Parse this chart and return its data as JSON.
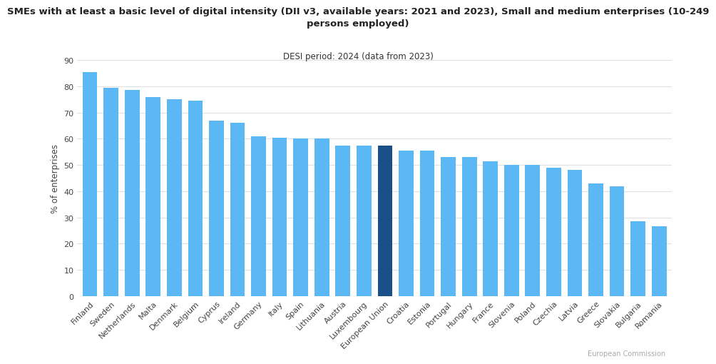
{
  "title_line1": "SMEs with at least a basic level of digital intensity (DII v3, available years: 2021 and 2023), Small and medium enterprises (10-249",
  "title_line2": "persons employed)",
  "subtitle": "DESI period: 2024 (data from 2023)",
  "ylabel": "% of enterprises",
  "categories": [
    "Finland",
    "Sweden",
    "Netherlands",
    "Malta",
    "Denmark",
    "Belgium",
    "Cyprus",
    "Ireland",
    "Germany",
    "Italy",
    "Spain",
    "Lithuania",
    "Austria",
    "Luxembourg",
    "European Union",
    "Croatia",
    "Estonia",
    "Portugal",
    "Hungary",
    "France",
    "Slovenia",
    "Poland",
    "Czechia",
    "Latvia",
    "Greece",
    "Slovakia",
    "Bulgaria",
    "Romania"
  ],
  "values": [
    85.5,
    79.5,
    78.5,
    76.0,
    75.0,
    74.5,
    67.0,
    66.0,
    61.0,
    60.5,
    60.0,
    60.0,
    57.5,
    57.5,
    57.5,
    55.5,
    55.5,
    53.0,
    53.0,
    51.5,
    50.0,
    50.0,
    49.0,
    48.0,
    43.0,
    42.0,
    28.5,
    26.5
  ],
  "bar_color_default": "#5BB8F5",
  "bar_color_eu": "#1B4F8A",
  "eu_index": 14,
  "background_color": "#ffffff",
  "grid_color": "#e0e0e0",
  "ylim": [
    0,
    90
  ],
  "yticks": [
    0,
    10,
    20,
    30,
    40,
    50,
    60,
    70,
    80,
    90
  ],
  "title_fontsize": 9.5,
  "subtitle_fontsize": 8.5,
  "axis_label_fontsize": 8.5,
  "tick_fontsize": 8,
  "watermark": "European Commission"
}
